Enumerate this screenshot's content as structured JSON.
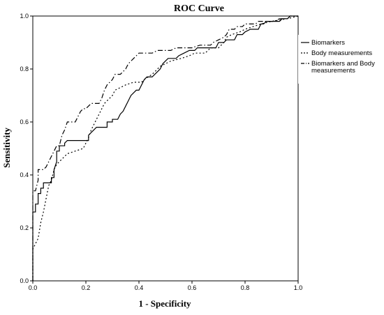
{
  "chart_data": {
    "type": "line",
    "title": "ROC Curve",
    "xlabel": "1 - Specificity",
    "ylabel": "Sensitivity",
    "xlim": [
      0,
      1
    ],
    "ylim": [
      0,
      1
    ],
    "x_ticks": [
      "0.0",
      "0.2",
      "0.4",
      "0.6",
      "0.8",
      "1.0"
    ],
    "y_ticks": [
      "0.0",
      "0.2",
      "0.4",
      "0.6",
      "0.8",
      "1.0"
    ],
    "grid": false,
    "legend_position": "right",
    "series": [
      {
        "name": "Biomarkers",
        "dash": "solid",
        "points": [
          [
            0,
            0
          ],
          [
            0,
            0.26
          ],
          [
            0.01,
            0.26
          ],
          [
            0.01,
            0.29
          ],
          [
            0.02,
            0.29
          ],
          [
            0.02,
            0.33
          ],
          [
            0.03,
            0.33
          ],
          [
            0.03,
            0.35
          ],
          [
            0.04,
            0.35
          ],
          [
            0.04,
            0.37
          ],
          [
            0.07,
            0.37
          ],
          [
            0.07,
            0.39
          ],
          [
            0.08,
            0.39
          ],
          [
            0.08,
            0.42
          ],
          [
            0.09,
            0.45
          ],
          [
            0.09,
            0.49
          ],
          [
            0.1,
            0.49
          ],
          [
            0.1,
            0.51
          ],
          [
            0.12,
            0.51
          ],
          [
            0.12,
            0.52
          ],
          [
            0.13,
            0.53
          ],
          [
            0.15,
            0.53
          ],
          [
            0.21,
            0.53
          ],
          [
            0.21,
            0.55
          ],
          [
            0.22,
            0.56
          ],
          [
            0.23,
            0.57
          ],
          [
            0.24,
            0.58
          ],
          [
            0.28,
            0.58
          ],
          [
            0.28,
            0.6
          ],
          [
            0.3,
            0.6
          ],
          [
            0.3,
            0.61
          ],
          [
            0.32,
            0.61
          ],
          [
            0.33,
            0.63
          ],
          [
            0.34,
            0.64
          ],
          [
            0.35,
            0.66
          ],
          [
            0.36,
            0.68
          ],
          [
            0.37,
            0.7
          ],
          [
            0.38,
            0.71
          ],
          [
            0.39,
            0.72
          ],
          [
            0.4,
            0.72
          ],
          [
            0.41,
            0.74
          ],
          [
            0.42,
            0.76
          ],
          [
            0.43,
            0.77
          ],
          [
            0.45,
            0.77
          ],
          [
            0.46,
            0.78
          ],
          [
            0.47,
            0.79
          ],
          [
            0.48,
            0.8
          ],
          [
            0.49,
            0.82
          ],
          [
            0.5,
            0.83
          ],
          [
            0.51,
            0.84
          ],
          [
            0.54,
            0.84
          ],
          [
            0.55,
            0.85
          ],
          [
            0.57,
            0.86
          ],
          [
            0.59,
            0.87
          ],
          [
            0.61,
            0.87
          ],
          [
            0.62,
            0.88
          ],
          [
            0.69,
            0.88
          ],
          [
            0.7,
            0.9
          ],
          [
            0.72,
            0.9
          ],
          [
            0.73,
            0.91
          ],
          [
            0.76,
            0.91
          ],
          [
            0.77,
            0.93
          ],
          [
            0.79,
            0.93
          ],
          [
            0.8,
            0.94
          ],
          [
            0.82,
            0.95
          ],
          [
            0.85,
            0.95
          ],
          [
            0.86,
            0.97
          ],
          [
            0.87,
            0.97
          ],
          [
            0.88,
            0.98
          ],
          [
            0.93,
            0.98
          ],
          [
            0.94,
            0.99
          ],
          [
            0.96,
            0.99
          ],
          [
            0.97,
            1
          ],
          [
            1,
            1
          ]
        ]
      },
      {
        "name": "Body measurements",
        "dash": "dotted",
        "points": [
          [
            0,
            0
          ],
          [
            0,
            0.12
          ],
          [
            0.01,
            0.14
          ],
          [
            0.02,
            0.16
          ],
          [
            0.03,
            0.22
          ],
          [
            0.04,
            0.26
          ],
          [
            0.05,
            0.31
          ],
          [
            0.06,
            0.36
          ],
          [
            0.07,
            0.38
          ],
          [
            0.08,
            0.42
          ],
          [
            0.09,
            0.44
          ],
          [
            0.11,
            0.46
          ],
          [
            0.13,
            0.48
          ],
          [
            0.16,
            0.49
          ],
          [
            0.19,
            0.5
          ],
          [
            0.2,
            0.52
          ],
          [
            0.21,
            0.54
          ],
          [
            0.22,
            0.57
          ],
          [
            0.23,
            0.59
          ],
          [
            0.24,
            0.61
          ],
          [
            0.25,
            0.63
          ],
          [
            0.26,
            0.65
          ],
          [
            0.27,
            0.67
          ],
          [
            0.28,
            0.68
          ],
          [
            0.3,
            0.7
          ],
          [
            0.31,
            0.72
          ],
          [
            0.33,
            0.73
          ],
          [
            0.35,
            0.74
          ],
          [
            0.38,
            0.75
          ],
          [
            0.41,
            0.75
          ],
          [
            0.42,
            0.76
          ],
          [
            0.45,
            0.78
          ],
          [
            0.46,
            0.79
          ],
          [
            0.48,
            0.81
          ],
          [
            0.5,
            0.82
          ],
          [
            0.52,
            0.83
          ],
          [
            0.56,
            0.84
          ],
          [
            0.59,
            0.85
          ],
          [
            0.61,
            0.86
          ],
          [
            0.65,
            0.86
          ],
          [
            0.67,
            0.88
          ],
          [
            0.7,
            0.88
          ],
          [
            0.72,
            0.9
          ],
          [
            0.73,
            0.92
          ],
          [
            0.75,
            0.93
          ],
          [
            0.78,
            0.94
          ],
          [
            0.8,
            0.95
          ],
          [
            0.83,
            0.96
          ],
          [
            0.86,
            0.97
          ],
          [
            0.9,
            0.98
          ],
          [
            0.96,
            0.99
          ],
          [
            1,
            1
          ]
        ]
      },
      {
        "name": "Biomarkers and Body measurements",
        "dash": "dashdot",
        "points": [
          [
            0,
            0
          ],
          [
            0,
            0.34
          ],
          [
            0.01,
            0.34
          ],
          [
            0.02,
            0.38
          ],
          [
            0.02,
            0.42
          ],
          [
            0.04,
            0.42
          ],
          [
            0.05,
            0.43
          ],
          [
            0.06,
            0.45
          ],
          [
            0.07,
            0.47
          ],
          [
            0.08,
            0.49
          ],
          [
            0.09,
            0.51
          ],
          [
            0.1,
            0.51
          ],
          [
            0.11,
            0.55
          ],
          [
            0.12,
            0.57
          ],
          [
            0.13,
            0.6
          ],
          [
            0.16,
            0.6
          ],
          [
            0.17,
            0.62
          ],
          [
            0.18,
            0.64
          ],
          [
            0.19,
            0.65
          ],
          [
            0.2,
            0.65
          ],
          [
            0.21,
            0.66
          ],
          [
            0.22,
            0.67
          ],
          [
            0.25,
            0.67
          ],
          [
            0.26,
            0.69
          ],
          [
            0.27,
            0.72
          ],
          [
            0.28,
            0.74
          ],
          [
            0.3,
            0.76
          ],
          [
            0.31,
            0.78
          ],
          [
            0.33,
            0.78
          ],
          [
            0.34,
            0.79
          ],
          [
            0.35,
            0.8
          ],
          [
            0.36,
            0.82
          ],
          [
            0.37,
            0.83
          ],
          [
            0.38,
            0.84
          ],
          [
            0.4,
            0.86
          ],
          [
            0.42,
            0.86
          ],
          [
            0.43,
            0.86
          ],
          [
            0.45,
            0.86
          ],
          [
            0.47,
            0.87
          ],
          [
            0.5,
            0.87
          ],
          [
            0.52,
            0.87
          ],
          [
            0.54,
            0.88
          ],
          [
            0.58,
            0.88
          ],
          [
            0.6,
            0.88
          ],
          [
            0.63,
            0.89
          ],
          [
            0.67,
            0.89
          ],
          [
            0.68,
            0.9
          ],
          [
            0.7,
            0.91
          ],
          [
            0.72,
            0.92
          ],
          [
            0.73,
            0.93
          ],
          [
            0.74,
            0.95
          ],
          [
            0.76,
            0.95
          ],
          [
            0.77,
            0.96
          ],
          [
            0.79,
            0.96
          ],
          [
            0.8,
            0.97
          ],
          [
            0.84,
            0.97
          ],
          [
            0.85,
            0.98
          ],
          [
            0.91,
            0.98
          ],
          [
            0.93,
            0.99
          ],
          [
            0.96,
            0.99
          ],
          [
            0.97,
            1
          ],
          [
            1,
            1
          ]
        ]
      }
    ]
  }
}
